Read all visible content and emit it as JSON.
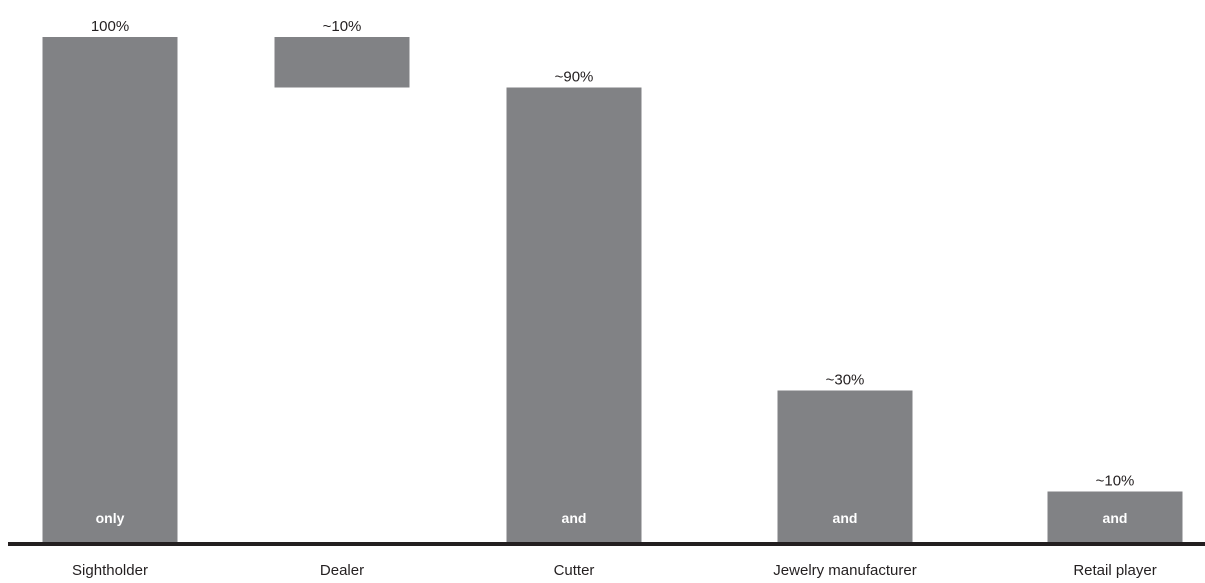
{
  "chart_data": {
    "type": "bar",
    "subtype": "waterfall",
    "title": "",
    "xlabel": "",
    "ylabel": "",
    "ylim": [
      0,
      100
    ],
    "grid": false,
    "legend": "none",
    "bar_color": "#818285",
    "categories": [
      "Sightholder",
      "Dealer",
      "Cutter",
      "Jewelry manufacturer",
      "Retail player"
    ],
    "bars": [
      {
        "category": "Sightholder",
        "base": 0,
        "value": 100,
        "label": "100%",
        "inbar_label": "only"
      },
      {
        "category": "Dealer",
        "base": 90,
        "value": 10,
        "label": "~10%",
        "inbar_label": ""
      },
      {
        "category": "Cutter",
        "base": 0,
        "value": 90,
        "label": "~90%",
        "inbar_label": "and"
      },
      {
        "category": "Jewelry manufacturer",
        "base": 0,
        "value": 30,
        "label": "~30%",
        "inbar_label": "and"
      },
      {
        "category": "Retail player",
        "base": 0,
        "value": 10,
        "label": "~10%",
        "inbar_label": "and"
      }
    ]
  }
}
